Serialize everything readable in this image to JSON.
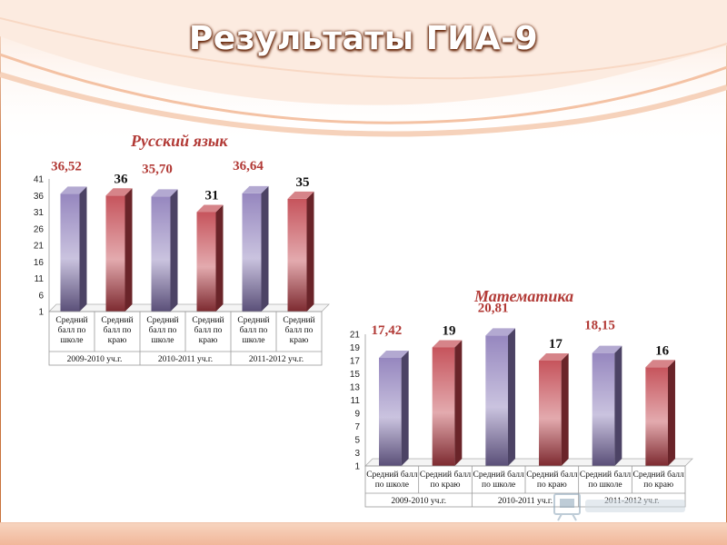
{
  "page": {
    "title": "Результаты ГИА-9"
  },
  "colors": {
    "purple_bar": "#8a7ab8",
    "red_bar": "#c0414a",
    "label_red": "#b23a36",
    "label_black": "#111111",
    "accent_orange": "#d9703a"
  },
  "chart_data": [
    {
      "type": "bar",
      "title": "Русский язык",
      "categories": [
        "Средний балл по школе",
        "Средний балл по краю",
        "Средний балл по школе",
        "Средний балл по краю",
        "Средний балл по школе",
        "Средний балл по краю"
      ],
      "category_lines": [
        [
          "Средний",
          "балл по",
          "школе"
        ],
        [
          "Средний",
          "балл по",
          "краю"
        ],
        [
          "Средний",
          "балл по",
          "школе"
        ],
        [
          "Средний",
          "балл по",
          "краю"
        ],
        [
          "Средний",
          "балл по",
          "школе"
        ],
        [
          "Средний",
          "балл по",
          "краю"
        ]
      ],
      "groups": [
        "2009-2010 уч.г.",
        "2010-2011 уч.г.",
        "2011-2012 уч.г."
      ],
      "values": [
        36.52,
        36,
        35.7,
        31,
        36.64,
        35
      ],
      "data_labels": [
        "36,52",
        "36",
        "35,70",
        "31",
        "36,64",
        "35"
      ],
      "yticks": [
        1,
        6,
        11,
        16,
        21,
        26,
        31,
        36,
        41
      ],
      "ylim": [
        1,
        41
      ],
      "legend": "none"
    },
    {
      "type": "bar",
      "title": "Математика",
      "categories": [
        "Средний балл по школе",
        "Средний балл по краю",
        "Средний балл по школе",
        "Средний балл по краю",
        "Средний балл по школе",
        "Средний балл по краю"
      ],
      "category_lines": [
        [
          "Средний балл",
          "по школе"
        ],
        [
          "Средний балл",
          "по краю"
        ],
        [
          "Средний балл",
          "по школе"
        ],
        [
          "Средний балл",
          "по краю"
        ],
        [
          "Средний балл",
          "по школе"
        ],
        [
          "Средний балл",
          "по краю"
        ]
      ],
      "groups": [
        "2009-2010 уч.г.",
        "2010-2011 уч.г.",
        "2011-2012 уч.г."
      ],
      "values": [
        17.42,
        19,
        20.81,
        17,
        18.15,
        16
      ],
      "data_labels": [
        "17,42",
        "19",
        "20,81",
        "17",
        "18,15",
        "16"
      ],
      "yticks": [
        1,
        3,
        5,
        7,
        9,
        11,
        13,
        15,
        17,
        19,
        21
      ],
      "ylim": [
        1,
        21
      ],
      "legend": "none"
    }
  ]
}
